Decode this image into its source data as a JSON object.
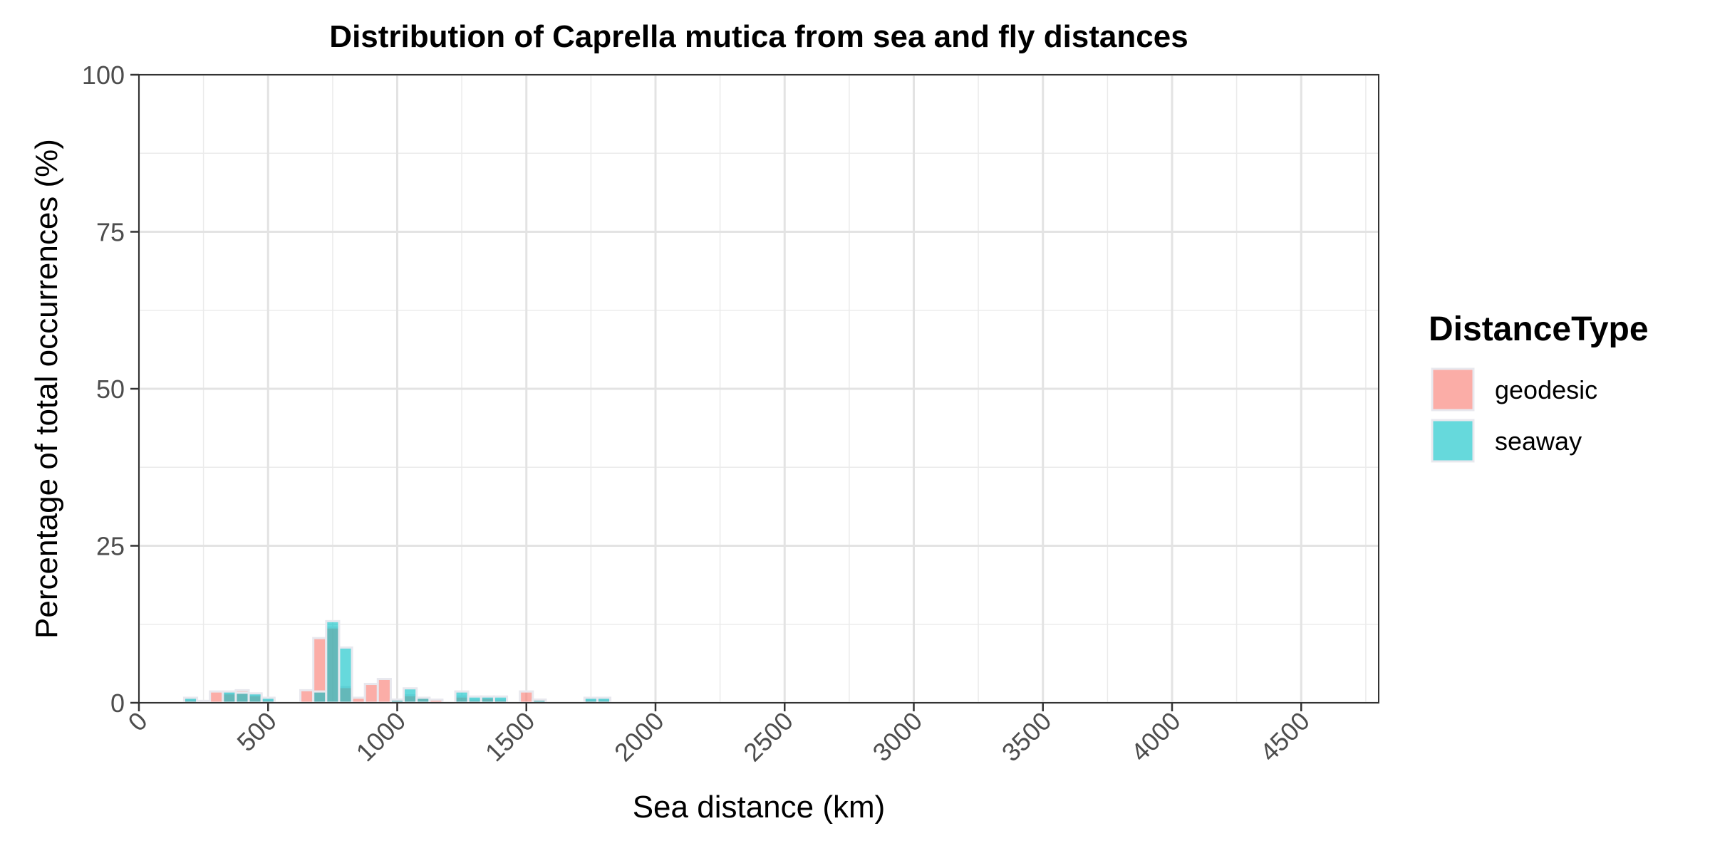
{
  "chart_data": {
    "type": "bar",
    "title": "Distribution of Caprella mutica from sea and fly distances",
    "xlabel": "Sea distance (km)",
    "ylabel": "Percentage of total occurrences (%)",
    "xlim": [
      0,
      4800
    ],
    "ylim": [
      0,
      100
    ],
    "x_ticks": [
      0,
      500,
      1000,
      1500,
      2000,
      2500,
      3000,
      3500,
      4000,
      4500
    ],
    "y_ticks": [
      0,
      25,
      50,
      75,
      100
    ],
    "x_tick_labels": [
      "0",
      "500",
      "1000",
      "1500",
      "2000",
      "2500",
      "3000",
      "3500",
      "4000",
      "4500"
    ],
    "y_tick_labels": [
      "0",
      "25",
      "50",
      "75",
      "100"
    ],
    "bin_width": 50,
    "grid": true,
    "legend_position": "right",
    "legend": {
      "title": "DistanceType"
    },
    "series": [
      {
        "name": "geodesic",
        "color": "#F8766D",
        "bins": [
          {
            "x": 200,
            "value": 0.5
          },
          {
            "x": 250,
            "value": 0.3
          },
          {
            "x": 300,
            "value": 1.8
          },
          {
            "x": 350,
            "value": 1.5
          },
          {
            "x": 400,
            "value": 2.0
          },
          {
            "x": 450,
            "value": 1.2
          },
          {
            "x": 500,
            "value": 0.5
          },
          {
            "x": 650,
            "value": 2.0
          },
          {
            "x": 700,
            "value": 10.3
          },
          {
            "x": 750,
            "value": 12.0
          },
          {
            "x": 800,
            "value": 2.5
          },
          {
            "x": 850,
            "value": 0.8
          },
          {
            "x": 900,
            "value": 3.0
          },
          {
            "x": 950,
            "value": 3.8
          },
          {
            "x": 1000,
            "value": 0.5
          },
          {
            "x": 1050,
            "value": 1.2
          },
          {
            "x": 1100,
            "value": 0.8
          },
          {
            "x": 1150,
            "value": 0.5
          },
          {
            "x": 1250,
            "value": 1.0
          },
          {
            "x": 1300,
            "value": 0.5
          },
          {
            "x": 1350,
            "value": 0.8
          },
          {
            "x": 1400,
            "value": 0.5
          },
          {
            "x": 1500,
            "value": 1.8
          },
          {
            "x": 1550,
            "value": 0.5
          },
          {
            "x": 1750,
            "value": 0.5
          },
          {
            "x": 1800,
            "value": 0.5
          }
        ]
      },
      {
        "name": "seaway",
        "color": "#00BFC4",
        "bins": [
          {
            "x": 200,
            "value": 0.8
          },
          {
            "x": 350,
            "value": 1.8
          },
          {
            "x": 400,
            "value": 1.6
          },
          {
            "x": 450,
            "value": 1.5
          },
          {
            "x": 500,
            "value": 0.8
          },
          {
            "x": 700,
            "value": 1.8
          },
          {
            "x": 750,
            "value": 13.0
          },
          {
            "x": 800,
            "value": 8.8
          },
          {
            "x": 1000,
            "value": 0.5
          },
          {
            "x": 1050,
            "value": 2.3
          },
          {
            "x": 1100,
            "value": 0.8
          },
          {
            "x": 1250,
            "value": 1.8
          },
          {
            "x": 1300,
            "value": 1.0
          },
          {
            "x": 1350,
            "value": 1.0
          },
          {
            "x": 1400,
            "value": 1.0
          },
          {
            "x": 1550,
            "value": 0.5
          },
          {
            "x": 1750,
            "value": 0.8
          },
          {
            "x": 1800,
            "value": 0.8
          }
        ]
      }
    ]
  }
}
